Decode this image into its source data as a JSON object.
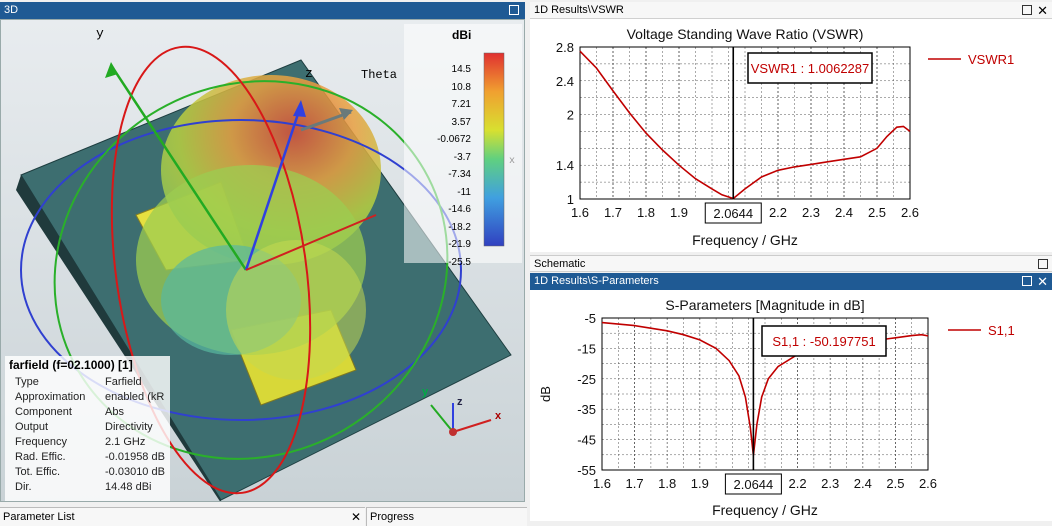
{
  "panels": {
    "view3d": {
      "title": "3D"
    },
    "vswr_window": {
      "title": "1D Results\\VSWR"
    },
    "schematic_window": {
      "title": "Schematic"
    },
    "sparam_window": {
      "title": "1D Results\\S-Parameters"
    },
    "parameter_list": {
      "title": "Parameter List"
    },
    "progress": {
      "title": "Progress"
    }
  },
  "view3d": {
    "axis_y": "y",
    "axis_z": "z",
    "theta_label": "Theta",
    "x_label_small": "x",
    "gizmo": {
      "y": "y",
      "z": "z",
      "x": "x"
    },
    "colorbar": {
      "unit": "dBi",
      "ticks": [
        "14.5",
        "10.8",
        "7.21",
        "3.57",
        "-0.0672",
        "-3.7",
        "-7.34",
        "-11",
        "-14.6",
        "-18.2",
        "-21.9",
        "-25.5"
      ]
    },
    "info": {
      "title": "farfield (f=02.1000) [1]",
      "rows": [
        {
          "k": "Type",
          "v": "Farfield"
        },
        {
          "k": "Approximation",
          "v": "enabled (kR"
        },
        {
          "k": "Component",
          "v": "Abs"
        },
        {
          "k": "Output",
          "v": "Directivity"
        },
        {
          "k": "Frequency",
          "v": "2.1 GHz"
        },
        {
          "k": "Rad. Effic.",
          "v": "-0.01958 dB"
        },
        {
          "k": "Tot. Effic.",
          "v": "-0.03010 dB"
        },
        {
          "k": "Dir.",
          "v": "14.48 dBi"
        }
      ]
    }
  },
  "chart_data": [
    {
      "type": "line",
      "title": "Voltage Standing Wave Ratio (VSWR)",
      "xlabel": "Frequency / GHz",
      "ylabel": "",
      "xlim": [
        1.6,
        2.6
      ],
      "ylim": [
        1,
        2.8
      ],
      "x_ticks": [
        "1.6",
        "1.7",
        "1.8",
        "1.9",
        "",
        "2.2",
        "2.3",
        "2.4",
        "2.5",
        "2.6"
      ],
      "y_ticks": [
        "1",
        "1.4",
        "2",
        "2.4",
        "2.8"
      ],
      "marker_x": "2.0644",
      "marker_label": "VSWR1 : 1.0062287",
      "series": [
        {
          "name": "VSWR1",
          "color": "#c00000",
          "x": [
            1.6,
            1.65,
            1.7,
            1.75,
            1.8,
            1.85,
            1.9,
            1.95,
            2.0,
            2.03,
            2.0644,
            2.1,
            2.15,
            2.2,
            2.25,
            2.3,
            2.35,
            2.4,
            2.45,
            2.5,
            2.53,
            2.56,
            2.58,
            2.6
          ],
          "y": [
            2.75,
            2.55,
            2.28,
            2.02,
            1.78,
            1.58,
            1.4,
            1.24,
            1.12,
            1.05,
            1.006,
            1.12,
            1.26,
            1.34,
            1.38,
            1.41,
            1.44,
            1.47,
            1.5,
            1.6,
            1.74,
            1.85,
            1.86,
            1.8
          ]
        }
      ]
    },
    {
      "type": "line",
      "title": "S-Parameters [Magnitude in dB]",
      "xlabel": "Frequency / GHz",
      "ylabel": "dB",
      "xlim": [
        1.6,
        2.6
      ],
      "ylim": [
        -55,
        -5
      ],
      "x_ticks": [
        "1.6",
        "1.7",
        "1.8",
        "1.9",
        "",
        "2.2",
        "2.3",
        "2.4",
        "2.5",
        "2.6"
      ],
      "y_ticks": [
        "-5",
        "-15",
        "-25",
        "-35",
        "-45",
        "-55"
      ],
      "marker_x": "2.0644",
      "marker_label": "S1,1 : -50.197751",
      "series": [
        {
          "name": "S1,1",
          "color": "#c00000",
          "x": [
            1.6,
            1.7,
            1.8,
            1.85,
            1.9,
            1.95,
            1.99,
            2.02,
            2.04,
            2.055,
            2.0644,
            2.075,
            2.09,
            2.11,
            2.14,
            2.2,
            2.3,
            2.4,
            2.45,
            2.5,
            2.55,
            2.58,
            2.6
          ],
          "y": [
            -6.5,
            -7.5,
            -9.2,
            -10.5,
            -12.2,
            -15,
            -19,
            -24,
            -31,
            -41,
            -50.2,
            -40,
            -31,
            -25,
            -21,
            -17,
            -14.5,
            -13,
            -12.2,
            -11.5,
            -10.8,
            -10.5,
            -10.9
          ]
        }
      ]
    }
  ],
  "bottom": {
    "schematic_stub": "Schematic"
  }
}
